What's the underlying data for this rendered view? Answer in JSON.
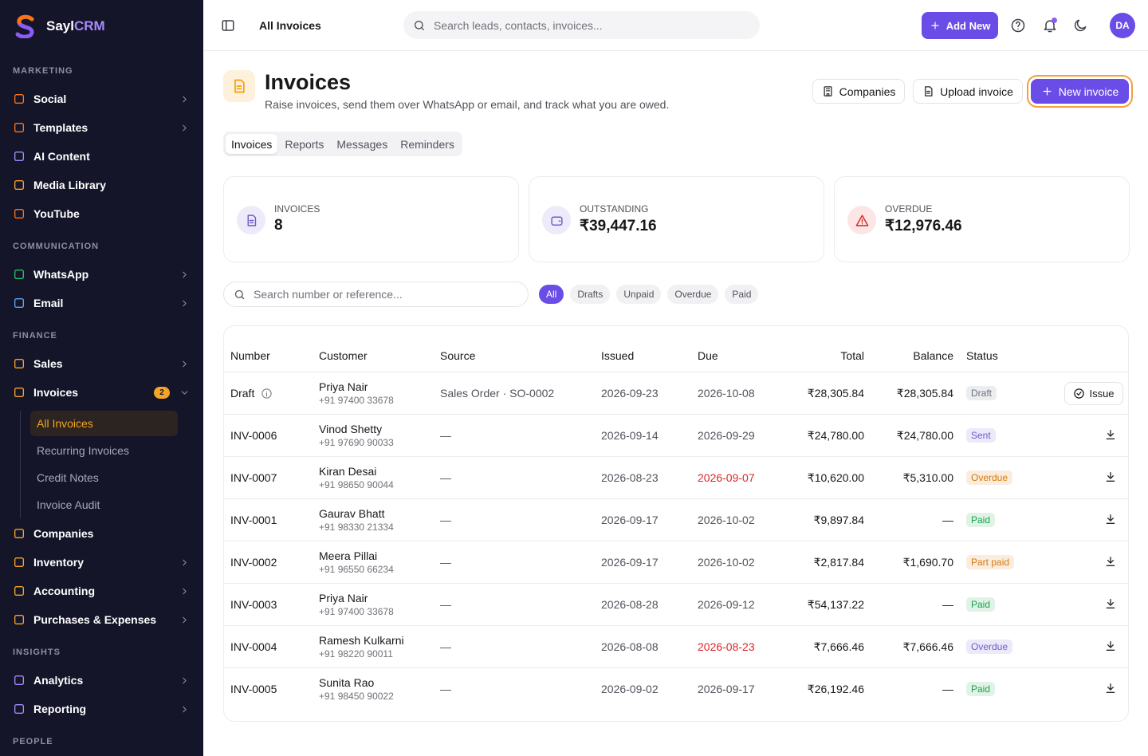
{
  "sidebar": {
    "brand": "Sayl",
    "brand_accent": "CRM",
    "sections": [
      {
        "title": "MARKETING",
        "items": [
          {
            "label": "Social",
            "chevron": true
          },
          {
            "label": "Templates",
            "chevron": true
          },
          {
            "label": "AI Content"
          },
          {
            "label": "Media Library"
          },
          {
            "label": "YouTube"
          }
        ]
      },
      {
        "title": "COMMUNICATION",
        "items": [
          {
            "label": "WhatsApp",
            "chevron": true
          },
          {
            "label": "Email",
            "chevron": true
          }
        ]
      },
      {
        "title": "FINANCE",
        "items": [
          {
            "label": "Sales",
            "chevron": true
          },
          {
            "label": "Invoices",
            "badge": "2",
            "expanded": true,
            "children": [
              {
                "label": "All Invoices",
                "active": true
              },
              {
                "label": "Recurring Invoices"
              },
              {
                "label": "Credit Notes"
              },
              {
                "label": "Invoice Audit"
              }
            ]
          },
          {
            "label": "Companies"
          },
          {
            "label": "Inventory",
            "chevron": true
          },
          {
            "label": "Accounting",
            "chevron": true
          },
          {
            "label": "Purchases & Expenses",
            "chevron": true
          }
        ]
      },
      {
        "title": "INSIGHTS",
        "items": [
          {
            "label": "Analytics",
            "chevron": true
          },
          {
            "label": "Reporting",
            "chevron": true
          }
        ]
      },
      {
        "title": "PEOPLE"
      }
    ]
  },
  "topbar": {
    "breadcrumb": "All Invoices",
    "search_placeholder": "Search leads, contacts, invoices...",
    "add_new": "Add New",
    "avatar": "DA"
  },
  "header": {
    "title": "Invoices",
    "subtitle": "Raise invoices, send them over WhatsApp or email, and track what you are owed.",
    "actions": [
      "Companies",
      "Upload invoice",
      "New invoice"
    ]
  },
  "tabs": {
    "items": [
      "Invoices",
      "Reports",
      "Messages",
      "Reminders"
    ],
    "active": 0
  },
  "stats": [
    {
      "label": "INVOICES",
      "value": "8",
      "color": "#6d5bd0"
    },
    {
      "label": "OUTSTANDING",
      "value": "₹39,447.16",
      "color": "#6d5bd0"
    },
    {
      "label": "OVERDUE",
      "value": "₹12,976.46",
      "color": "#dc2626"
    }
  ],
  "filters": {
    "search_placeholder": "Search number or reference...",
    "chips": [
      "All",
      "Drafts",
      "Unpaid",
      "Overdue",
      "Paid"
    ],
    "active": 0
  },
  "table": {
    "columns": [
      "Number",
      "Customer",
      "Source",
      "Issued",
      "Due",
      "Total",
      "Balance",
      "Status"
    ],
    "rows": [
      {
        "number": "Draft",
        "customer": "Priya Nair",
        "phone": "+91 97400 33678",
        "source": "Sales Order · SO-0002",
        "issued": "2026-09-23",
        "due": "2026-10-08",
        "total": "₹28,305.84",
        "balance": "₹28,305.84",
        "status": "Draft",
        "status_color": "#6b7280",
        "action": "Issue"
      },
      {
        "number": "INV-0006",
        "customer": "Vinod Shetty",
        "phone": "+91 97690 90033",
        "source": "—",
        "issued": "2026-09-14",
        "due": "2026-09-29",
        "total": "₹24,780.00",
        "balance": "₹24,780.00",
        "status": "Sent",
        "status_color": "#6d5bd0"
      },
      {
        "number": "INV-0007",
        "customer": "Kiran Desai",
        "phone": "+91 98650 90044",
        "source": "—",
        "issued": "2026-08-23",
        "due": "2026-09-07",
        "due_color": "#dc2626",
        "total": "₹10,620.00",
        "balance": "₹5,310.00",
        "status": "Overdue",
        "status_color": "#d97706"
      },
      {
        "number": "INV-0001",
        "customer": "Gaurav Bhatt",
        "phone": "+91 98330 21334",
        "source": "—",
        "issued": "2026-09-17",
        "due": "2026-10-02",
        "total": "₹9,897.84",
        "balance": "—",
        "status": "Paid",
        "status_color": "#16a34a"
      },
      {
        "number": "INV-0002",
        "customer": "Meera Pillai",
        "phone": "+91 96550 66234",
        "source": "—",
        "issued": "2026-09-17",
        "due": "2026-10-02",
        "total": "₹2,817.84",
        "balance": "₹1,690.70",
        "status": "Part paid",
        "status_color": "#d97706"
      },
      {
        "number": "INV-0003",
        "customer": "Priya Nair",
        "phone": "+91 97400 33678",
        "source": "—",
        "issued": "2026-08-28",
        "due": "2026-09-12",
        "total": "₹54,137.22",
        "balance": "—",
        "status": "Paid",
        "status_color": "#16a34a"
      },
      {
        "number": "INV-0004",
        "customer": "Ramesh Kulkarni",
        "phone": "+91 98220 90011",
        "source": "—",
        "issued": "2026-08-08",
        "due": "2026-08-23",
        "due_color": "#dc2626",
        "total": "₹7,666.46",
        "balance": "₹7,666.46",
        "status": "Overdue",
        "status_color": "#6d5bd0"
      },
      {
        "number": "INV-0005",
        "customer": "Sunita Rao",
        "phone": "+91 98450 90022",
        "source": "—",
        "issued": "2026-09-02",
        "due": "2026-09-17",
        "total": "₹26,192.46",
        "balance": "—",
        "status": "Paid",
        "status_color": "#16a34a"
      }
    ]
  }
}
